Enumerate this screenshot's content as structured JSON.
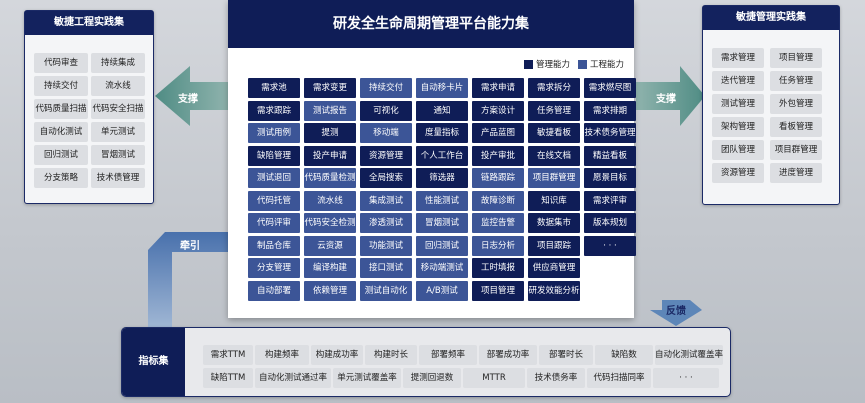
{
  "main": {
    "title": "研发全生命周期管理平台能力集",
    "legend": [
      {
        "label": "管理能力",
        "color": "#0f1d57"
      },
      {
        "label": "工程能力",
        "color": "#3c5597"
      }
    ],
    "rows": [
      [
        [
          "需求池",
          "D"
        ],
        [
          "需求变更",
          "D"
        ],
        [
          "持续交付",
          "L"
        ],
        [
          "自动移卡片",
          "L"
        ],
        [
          "需求申请",
          "D"
        ],
        [
          "需求拆分",
          "D"
        ],
        [
          "需求燃尽图",
          "D"
        ]
      ],
      [
        [
          "需求跟踪",
          "D"
        ],
        [
          "测试报告",
          "L"
        ],
        [
          "可视化",
          "D"
        ],
        [
          "通知",
          "D"
        ],
        [
          "方案设计",
          "D"
        ],
        [
          "任务管理",
          "D"
        ],
        [
          "需求排期",
          "D"
        ]
      ],
      [
        [
          "测试用例",
          "L"
        ],
        [
          "提测",
          "D"
        ],
        [
          "移动端",
          "L"
        ],
        [
          "度量指标",
          "D"
        ],
        [
          "产品蓝图",
          "D"
        ],
        [
          "敏捷看板",
          "D"
        ],
        [
          "技术债务管理",
          "D"
        ]
      ],
      [
        [
          "缺陷管理",
          "D"
        ],
        [
          "投产申请",
          "D"
        ],
        [
          "资源管理",
          "D"
        ],
        [
          "个人工作台",
          "D"
        ],
        [
          "投产审批",
          "D"
        ],
        [
          "在线文档",
          "D"
        ],
        [
          "精益看板",
          "D"
        ]
      ],
      [
        [
          "测试退回",
          "L"
        ],
        [
          "代码质量检测",
          "L"
        ],
        [
          "全局搜索",
          "D"
        ],
        [
          "筛选器",
          "D"
        ],
        [
          "链路跟踪",
          "L"
        ],
        [
          "项目群管理",
          "L"
        ],
        [
          "愿景目标",
          "D"
        ]
      ],
      [
        [
          "代码托管",
          "L"
        ],
        [
          "流水线",
          "L"
        ],
        [
          "集成测试",
          "L"
        ],
        [
          "性能测试",
          "L"
        ],
        [
          "故障诊断",
          "L"
        ],
        [
          "知识库",
          "D"
        ],
        [
          "需求评审",
          "D"
        ]
      ],
      [
        [
          "代码评审",
          "L"
        ],
        [
          "代码安全检测",
          "L"
        ],
        [
          "渗透测试",
          "L"
        ],
        [
          "冒烟测试",
          "L"
        ],
        [
          "监控告警",
          "L"
        ],
        [
          "数据集市",
          "D"
        ],
        [
          "版本规划",
          "D"
        ]
      ],
      [
        [
          "制品仓库",
          "L"
        ],
        [
          "云资源",
          "L"
        ],
        [
          "功能测试",
          "L"
        ],
        [
          "回归测试",
          "L"
        ],
        [
          "日志分析",
          "L"
        ],
        [
          "项目跟踪",
          "D"
        ],
        [
          "· · ·",
          "D"
        ]
      ],
      [
        [
          "分支管理",
          "L"
        ],
        [
          "编译构建",
          "L"
        ],
        [
          "接口测试",
          "L"
        ],
        [
          "移动端测试",
          "L"
        ],
        [
          "工时填报",
          "D"
        ],
        [
          "供应商管理",
          "D"
        ]
      ],
      [
        [
          "自动部署",
          "L"
        ],
        [
          "依赖管理",
          "L"
        ],
        [
          "测试自动化",
          "L"
        ],
        [
          "A/B测试",
          "L"
        ],
        [
          "项目管理",
          "D"
        ],
        [
          "研发效能分析",
          "D"
        ]
      ]
    ]
  },
  "left": {
    "title": "敏捷工程实践集",
    "items": [
      "代码审查",
      "持续集成",
      "持续交付",
      "流水线",
      "代码质量扫描",
      "代码安全扫描",
      "自动化测试",
      "单元测试",
      "回归测试",
      "冒烟测试",
      "分支策略",
      "技术债管理"
    ]
  },
  "right": {
    "title": "敏捷管理实践集",
    "items": [
      "需求管理",
      "项目管理",
      "迭代管理",
      "任务管理",
      "测试管理",
      "外包管理",
      "架构管理",
      "看板管理",
      "团队管理",
      "项目群管理",
      "资源管理",
      "进度管理"
    ]
  },
  "arrows": {
    "support_left": "支撑",
    "support_right": "支撑",
    "traction": "牵引",
    "feedback": "反馈"
  },
  "metrics": {
    "title": "指标集",
    "row1": [
      "需求TTM",
      "构建频率",
      "构建成功率",
      "构建时长",
      "部署频率",
      "部署成功率",
      "部署时长",
      "缺陷数",
      "自动化测试覆盖率"
    ],
    "row2": [
      "缺陷TTM",
      "自动化测试通过率",
      "单元测试覆盖率",
      "提测回退数",
      "MTTR",
      "技术债务率",
      "代码扫描同率",
      "· · ·"
    ]
  }
}
